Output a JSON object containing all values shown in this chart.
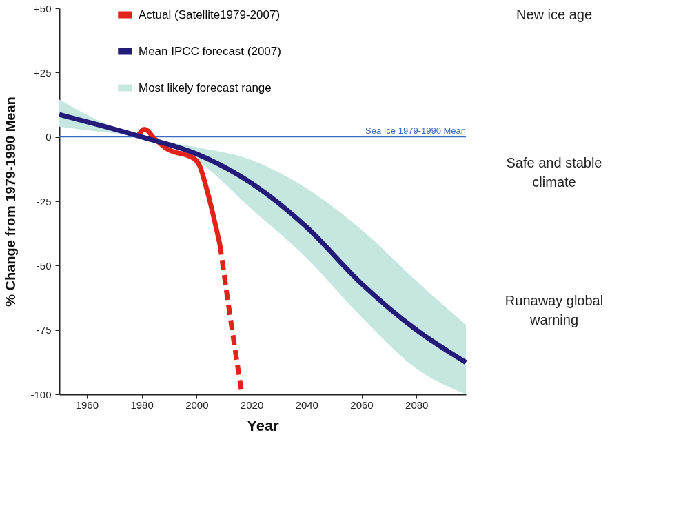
{
  "chart_data": {
    "type": "line",
    "xlabel": "Year",
    "ylabel": "% Change from 1979-1990 Mean",
    "xlim": [
      1950,
      2098
    ],
    "xticks": [
      1960,
      1980,
      2000,
      2020,
      2040,
      2060,
      2080
    ],
    "ylim": [
      -100,
      50
    ],
    "yticks": [
      -100,
      -75,
      -50,
      -25,
      0,
      {
        "value": 25,
        "label": "+25"
      },
      {
        "value": 50,
        "label": "+50"
      }
    ],
    "legend": "top left",
    "grid": false,
    "series": [
      {
        "name": "Actual (Satellite1979-2007)",
        "color": "#e2231a",
        "x": [
          1979,
          1981,
          1985,
          1989,
          1999,
          2001,
          2003.6,
          2008.5
        ],
        "values": [
          1,
          3,
          -1,
          -4.5,
          -8.4,
          -11,
          -20,
          -42
        ]
      },
      {
        "name": "Mean IPCC forecast (2007)",
        "color": "#241a7a",
        "x": [
          1950,
          1965,
          1980,
          2000,
          2020,
          2040,
          2060,
          2080,
          2098
        ],
        "values": [
          8.7,
          4.5,
          0,
          -6.6,
          -18,
          -35,
          -57,
          -75,
          -87.6
        ],
        "lower": [
          4,
          2,
          0,
          -9,
          -28,
          -47,
          -70,
          -90,
          -100
        ],
        "upper": [
          14.5,
          6,
          0,
          -4,
          -9,
          -20,
          -36,
          -56,
          -73
        ]
      },
      {
        "color": "#e2231a",
        "line_style": "dashed",
        "x": [
          2008.5,
          2012.5,
          2016.5
        ],
        "values": [
          -42,
          -72,
          -100
        ]
      }
    ],
    "ref_lines": [
      {
        "axis": "y",
        "value": 0,
        "label": "Sea Ice 1979-1990 Mean",
        "color": "#3b6bbf"
      }
    ],
    "annotations": [
      "Most likely forecast range",
      "New ice age",
      "Safe and stable climate",
      "Runaway global warning"
    ]
  }
}
